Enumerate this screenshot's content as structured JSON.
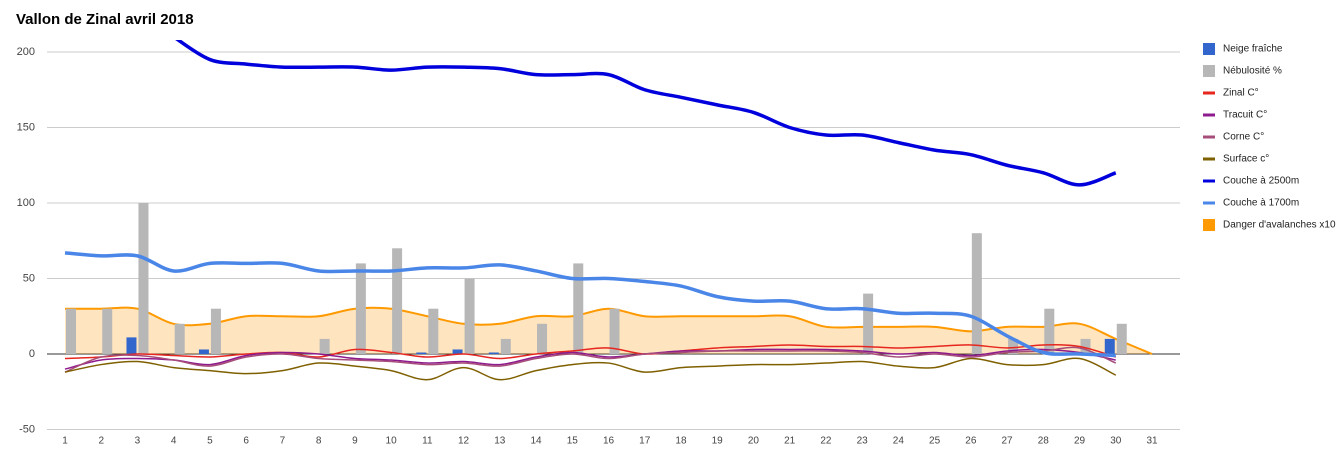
{
  "chart_data": {
    "type": "combo",
    "title": "Vallon de Zinal avril 2018",
    "categories": [
      "1",
      "2",
      "3",
      "4",
      "5",
      "6",
      "7",
      "8",
      "9",
      "10",
      "11",
      "12",
      "13",
      "14",
      "15",
      "16",
      "17",
      "18",
      "19",
      "20",
      "21",
      "22",
      "23",
      "24",
      "25",
      "26",
      "27",
      "28",
      "29",
      "30",
      "31"
    ],
    "ylim": [
      -50,
      210
    ],
    "yticks": [
      -50,
      0,
      50,
      100,
      150,
      200
    ],
    "grid": true,
    "legend": "right",
    "series": [
      {
        "name": "Neige fraîche",
        "kind": "bar",
        "color": "#3366cc",
        "values": [
          0,
          0,
          11,
          0,
          3,
          0,
          0,
          0,
          0,
          0,
          1,
          3,
          1,
          0,
          0,
          0,
          0,
          0,
          0,
          0,
          0,
          0,
          0,
          0,
          0,
          0,
          0,
          0,
          0,
          10,
          null
        ]
      },
      {
        "name": "Nébulosité %",
        "kind": "bar",
        "color": "#b7b7b7",
        "values": [
          30,
          30,
          100,
          20,
          30,
          0,
          0,
          10,
          60,
          70,
          30,
          50,
          10,
          20,
          60,
          30,
          0,
          0,
          0,
          0,
          0,
          0,
          40,
          0,
          0,
          80,
          10,
          30,
          10,
          20,
          null
        ]
      },
      {
        "name": "Zinal C°",
        "kind": "line",
        "color": "#e6261f",
        "values": [
          -3,
          -2,
          0,
          -1,
          -2,
          0,
          1,
          -2,
          3,
          1,
          -2,
          0,
          -3,
          0,
          2,
          4,
          0,
          2,
          4,
          5,
          6,
          5,
          5,
          4,
          5,
          6,
          4,
          6,
          5,
          -2,
          null
        ]
      },
      {
        "name": "Tracuit C°",
        "kind": "line",
        "color": "#8e1b8e",
        "values": [
          -10,
          -4,
          -3,
          -4,
          -7,
          -1,
          1,
          0,
          -3,
          -4,
          -6,
          -5,
          -7,
          -2,
          1,
          -2,
          0,
          2,
          2,
          3,
          3,
          3,
          2,
          0,
          1,
          -1,
          2,
          3,
          1,
          -4,
          null
        ]
      },
      {
        "name": "Corne C°",
        "kind": "line",
        "color": "#a64d79",
        "values": [
          -12,
          -2,
          -1,
          -4,
          -8,
          -2,
          0,
          -3,
          -4,
          -5,
          -7,
          -6,
          -8,
          -3,
          0,
          -3,
          0,
          1,
          2,
          2,
          2,
          2,
          1,
          -2,
          0,
          -2,
          1,
          2,
          4,
          -6,
          null
        ]
      },
      {
        "name": "Surface c°",
        "kind": "line",
        "color": "#7f6000",
        "values": [
          -12,
          -7,
          -5,
          -9,
          -11,
          -13,
          -11,
          -6,
          -8,
          -11,
          -17,
          -9,
          -17,
          -11,
          -7,
          -6,
          -12,
          -9,
          -8,
          -7,
          -7,
          -6,
          -5,
          -8,
          -9,
          -3,
          -7,
          -7,
          -3,
          -14,
          null
        ]
      },
      {
        "name": "Couche à 2500m",
        "kind": "line",
        "color": "#0000dd",
        "values": [
          null,
          null,
          null,
          210,
          195,
          192,
          190,
          190,
          190,
          188,
          190,
          190,
          189,
          185,
          185,
          185,
          175,
          170,
          165,
          160,
          150,
          145,
          145,
          140,
          135,
          132,
          125,
          120,
          112,
          120,
          null
        ]
      },
      {
        "name": "Couche à 1700m",
        "kind": "line",
        "color": "#4a86e8",
        "values": [
          67,
          65,
          65,
          55,
          60,
          60,
          60,
          55,
          55,
          55,
          57,
          57,
          59,
          55,
          50,
          50,
          48,
          45,
          38,
          35,
          35,
          30,
          30,
          27,
          27,
          25,
          12,
          1,
          0,
          -1,
          null
        ]
      },
      {
        "name": "Danger d'avalanches x10",
        "kind": "area",
        "color": "#ff9900",
        "values": [
          30,
          30,
          30,
          20,
          20,
          25,
          25,
          25,
          30,
          30,
          25,
          20,
          20,
          25,
          25,
          30,
          25,
          25,
          25,
          25,
          25,
          18,
          18,
          18,
          18,
          15,
          18,
          18,
          20,
          10,
          0
        ]
      }
    ]
  }
}
